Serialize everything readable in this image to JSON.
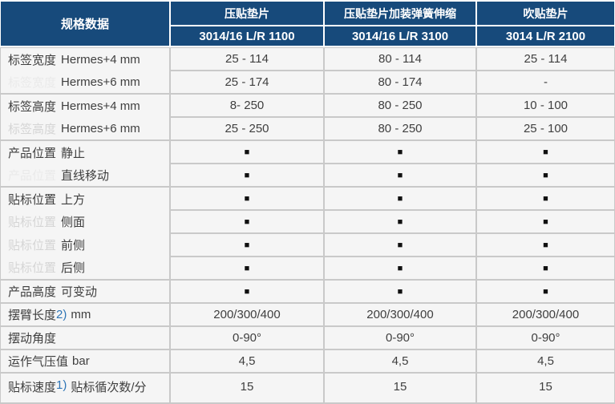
{
  "header": {
    "corner": "规格数据",
    "columns": [
      {
        "product": "压贴垫片",
        "model": "3014/16 L/R 1100"
      },
      {
        "product": "压贴垫片加装弹簧伸缩",
        "model": "3014/16 L/R 3100"
      },
      {
        "product": "吹贴垫片",
        "model": "3014 L/R 2100"
      }
    ]
  },
  "marker_glyph": "■",
  "colors": {
    "header_bg": "#174a7b",
    "header_text": "#ffffff",
    "cell_bg": "#f5f5f5",
    "grid_line": "#c9c9c9",
    "body_text": "#3f3f3f",
    "footnote_blue": "#2e75b6",
    "ghost_light": "#d5d5d5",
    "ghost_faint": "#eaeaea",
    "marker_black": "#101010"
  },
  "groups": [
    {
      "label": "标签宽度",
      "rows": [
        {
          "sublabel": "Hermes+4 mm",
          "values": [
            "25 - 114",
            "80 - 114",
            "25 - 114"
          ]
        },
        {
          "sublabel": "Hermes+6 mm",
          "ghost": "标签宽度",
          "ghost_style": "faint",
          "values": [
            "25 - 174",
            "80 - 174",
            "-"
          ]
        }
      ]
    },
    {
      "label": "标签高度",
      "rows": [
        {
          "sublabel": "Hermes+4 mm",
          "values": [
            "8- 250",
            "80 - 250",
            "10 - 100"
          ]
        },
        {
          "sublabel": "Hermes+6 mm",
          "ghost": "标签高度",
          "ghost_style": "light",
          "values": [
            "25 - 250",
            "80 - 250",
            "25 - 100"
          ]
        }
      ]
    },
    {
      "label": "产品位置",
      "rows": [
        {
          "sublabel": "静止",
          "values": [
            "■",
            "■",
            "■"
          ]
        },
        {
          "sublabel": "直线移动",
          "ghost": "产品位置",
          "ghost_style": "faint",
          "values": [
            "■",
            "■",
            "■"
          ]
        }
      ]
    },
    {
      "label": "贴标位置",
      "rows": [
        {
          "sublabel": "上方",
          "values": [
            "■",
            "■",
            "■"
          ]
        },
        {
          "sublabel": "侧面",
          "ghost": "贴标位置",
          "ghost_style": "light",
          "values": [
            "■",
            "■",
            "■"
          ]
        },
        {
          "sublabel": "前侧",
          "ghost": "贴标位置",
          "ghost_style": "light",
          "values": [
            "■",
            "■",
            "■"
          ]
        },
        {
          "sublabel": "后侧",
          "ghost": "贴标位置",
          "ghost_style": "light",
          "values": [
            "■",
            "■",
            "■"
          ]
        }
      ]
    },
    {
      "label": "产品高度",
      "rows": [
        {
          "sublabel": "可变动",
          "values": [
            "■",
            "■",
            "■"
          ]
        }
      ]
    },
    {
      "label": "摆臂长度",
      "note": "2)",
      "suffix": "mm",
      "rows": [
        {
          "sublabel": "",
          "values": [
            "200/300/400",
            "200/300/400",
            "200/300/400"
          ]
        }
      ]
    },
    {
      "label": "摆动角度",
      "rows": [
        {
          "sublabel": "",
          "values": [
            "0-90°",
            "0-90°",
            "0-90°"
          ]
        }
      ]
    },
    {
      "label": "运作气压值",
      "suffix": "bar",
      "rows": [
        {
          "sublabel": "",
          "values": [
            "4,5",
            "4,5",
            "4,5"
          ]
        }
      ]
    },
    {
      "label": "贴标速度",
      "note": "1)",
      "suffix": "贴标循次数/分",
      "rows": [
        {
          "sublabel": "",
          "values": [
            "15",
            "15",
            "15"
          ]
        }
      ]
    }
  ]
}
